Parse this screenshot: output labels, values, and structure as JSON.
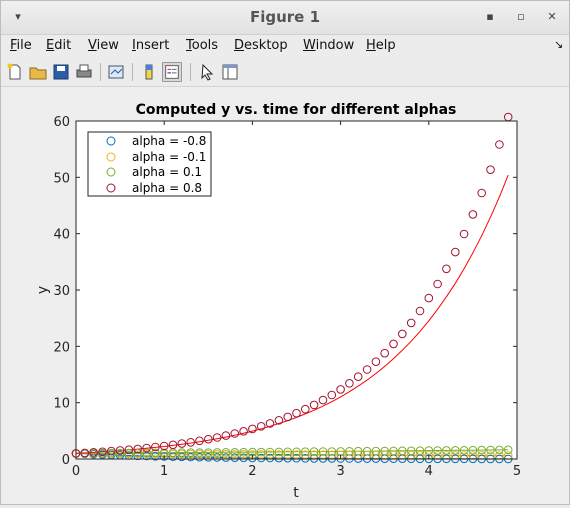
{
  "window": {
    "title": "Figure 1"
  },
  "menu": [
    {
      "u": "F",
      "rest": "ile"
    },
    {
      "u": "E",
      "rest": "dit"
    },
    {
      "u": "V",
      "rest": "iew"
    },
    {
      "u": "I",
      "rest": "nsert"
    },
    {
      "u": "T",
      "rest": "ools"
    },
    {
      "u": "D",
      "rest": "esktop"
    },
    {
      "u": "W",
      "rest": "indow"
    },
    {
      "u": "H",
      "rest": "elp"
    }
  ],
  "chart_data": {
    "type": "scatter",
    "title": "Computed y vs. time for different alphas",
    "xlabel": "t",
    "ylabel": "y",
    "xlim": [
      0,
      5
    ],
    "ylim": [
      0,
      60
    ],
    "xticks": [
      0,
      1,
      2,
      3,
      4,
      5
    ],
    "yticks": [
      0,
      10,
      20,
      30,
      40,
      50,
      60
    ],
    "legend_position": "top-left",
    "grid": false,
    "series": [
      {
        "name": "alpha = -0.8",
        "color": "#0072bd",
        "marker": "circle",
        "computed_rate": -0.8
      },
      {
        "name": "alpha = -0.1",
        "color": "#edb120",
        "marker": "circle",
        "computed_rate": -0.1
      },
      {
        "name": "alpha = 0.1",
        "color": "#77ac30",
        "marker": "circle",
        "computed_rate": 0.1
      },
      {
        "name": "alpha = 0.8",
        "color": "#a2142f",
        "marker": "circle",
        "computed_rate": 0.838
      }
    ],
    "exact_curves": [
      {
        "color": "#0072bd",
        "rate": -0.8
      },
      {
        "color": "#edb120",
        "rate": -0.1
      },
      {
        "color": "#77ac30",
        "rate": 0.1
      },
      {
        "color": "#ff0000",
        "rate": 0.8
      }
    ],
    "t_step": 0.1,
    "t_max": 4.9
  }
}
